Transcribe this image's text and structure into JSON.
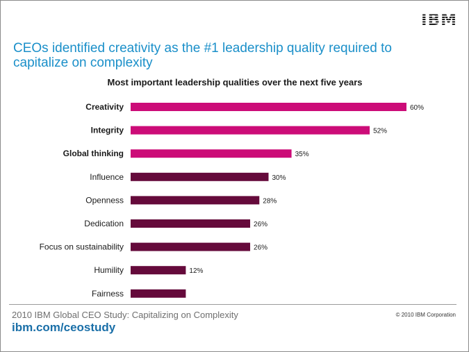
{
  "slide": {
    "logo_text": "IBM",
    "headline": "CEOs identified creativity as the #1 leadership quality required to capitalize on complexity",
    "footer": {
      "study_name": "2010 IBM Global CEO Study: Capitalizing on Complexity",
      "study_url": "ibm.com/ceostudy",
      "copyright": "© 2010 IBM Corporation"
    }
  },
  "colors": {
    "highlight_bar": "#cc0c78",
    "standard_bar": "#650a3b",
    "headline": "#1a8fc9"
  },
  "chart_data": {
    "type": "bar",
    "orientation": "horizontal",
    "title": "Most important leadership qualities over the next five years",
    "xlabel": "",
    "ylabel": "",
    "xlim": [
      0,
      60
    ],
    "grid": false,
    "legend": "none",
    "categories": [
      "Creativity",
      "Integrity",
      "Global thinking",
      "Influence",
      "Openness",
      "Dedication",
      "Focus on sustainability",
      "Humility",
      "Fairness"
    ],
    "values": [
      60,
      52,
      35,
      30,
      28,
      26,
      26,
      12,
      12
    ],
    "value_labels": [
      "60%",
      "52%",
      "35%",
      "30%",
      "28%",
      "26%",
      "26%",
      "12%",
      ""
    ],
    "highlighted": [
      true,
      true,
      true,
      false,
      false,
      false,
      false,
      false,
      false
    ]
  }
}
